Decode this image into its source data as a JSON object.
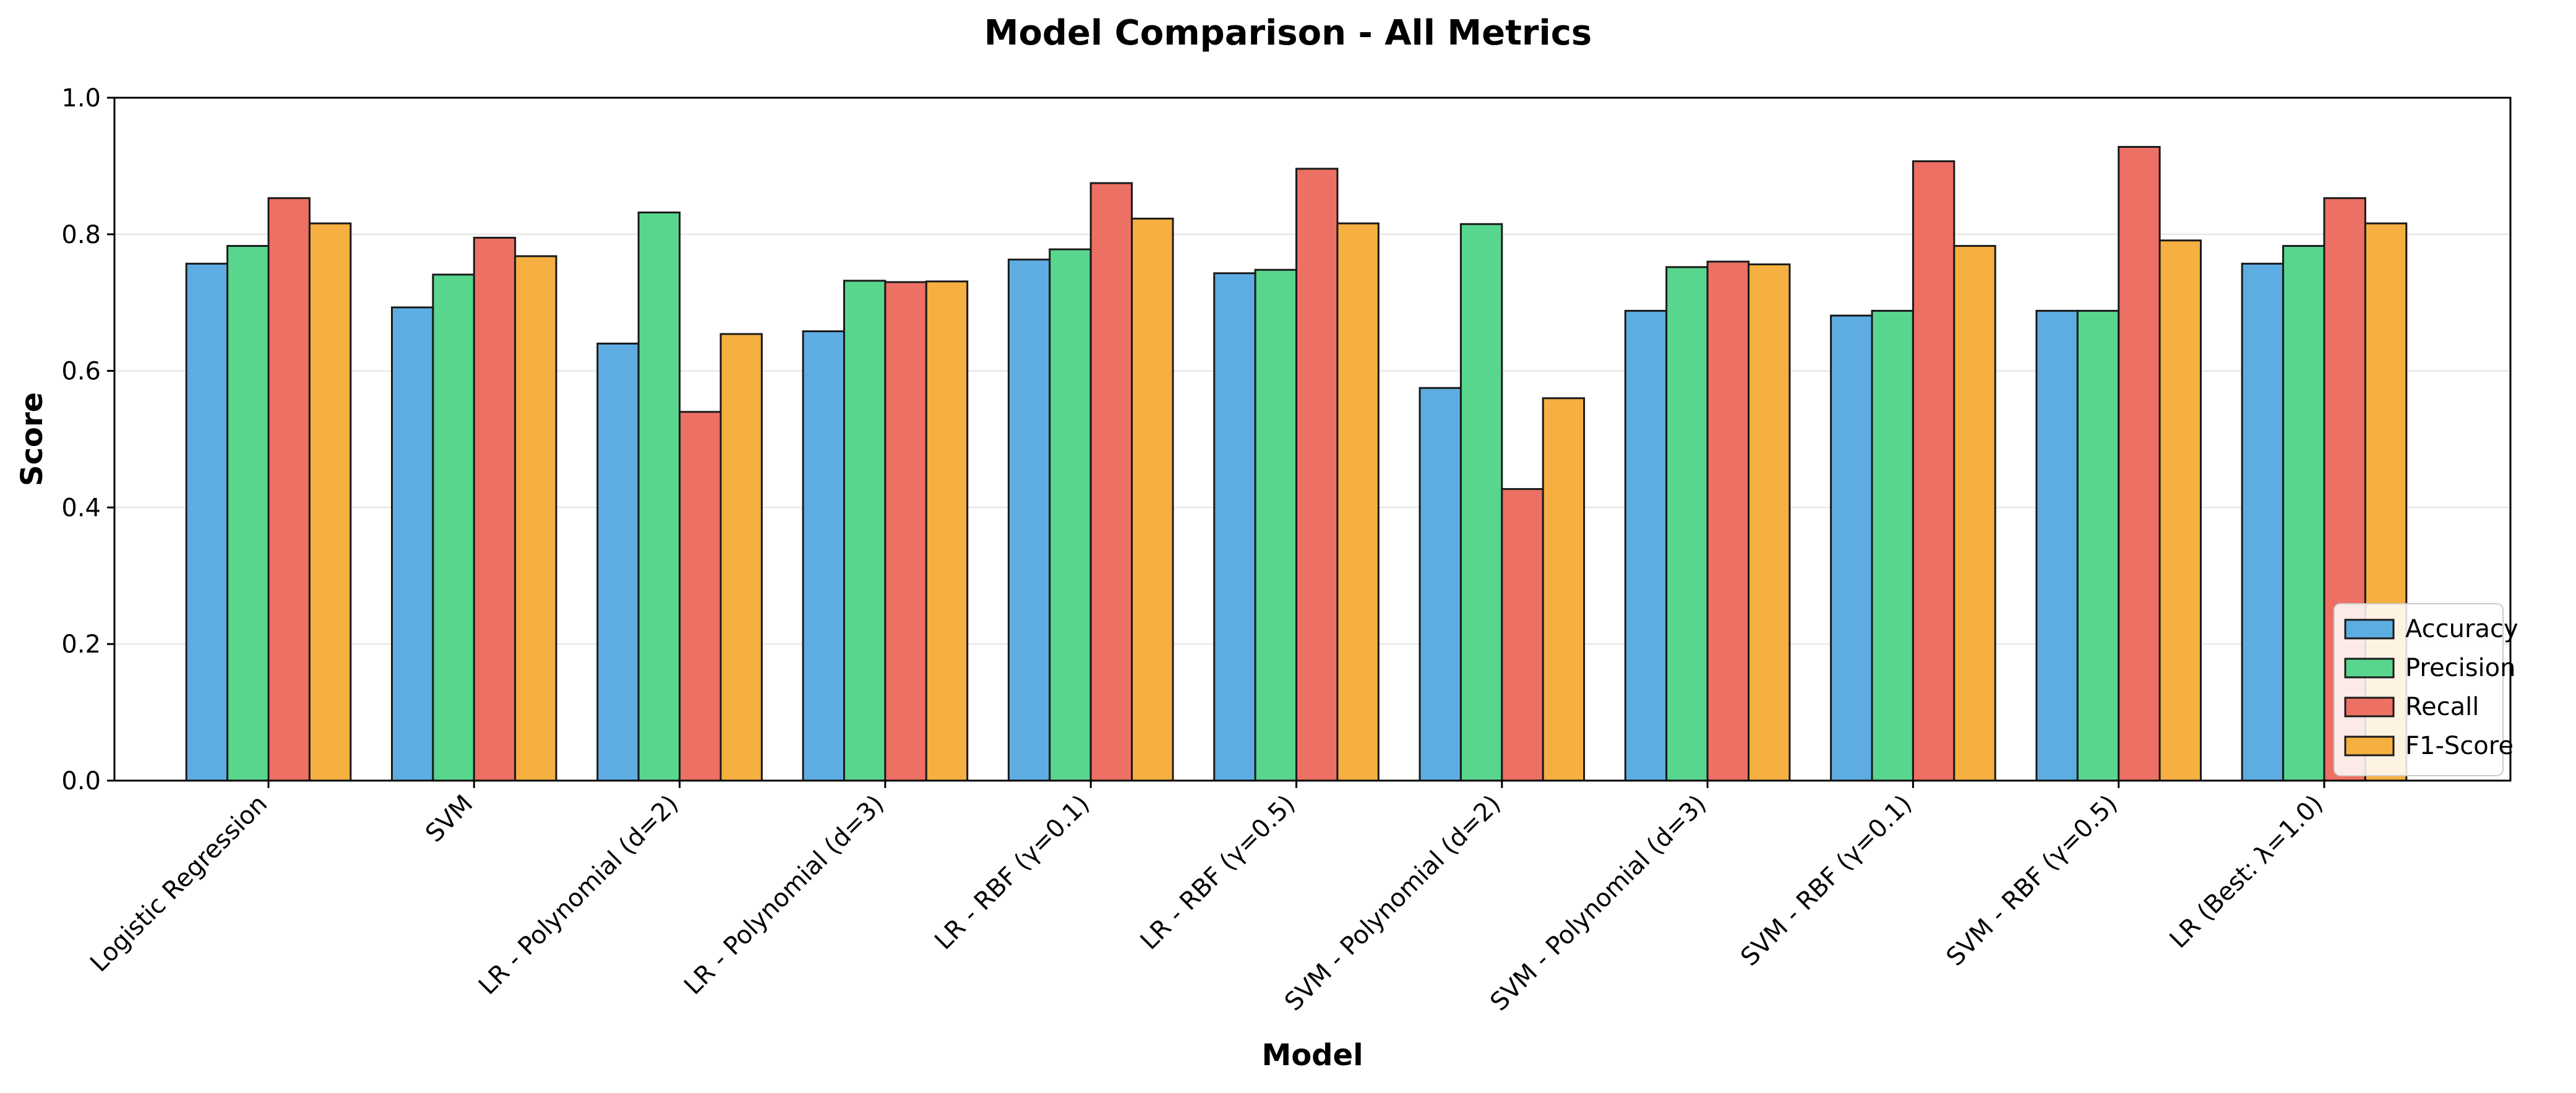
{
  "chart_data": {
    "type": "bar",
    "title": "Model Comparison - All Metrics",
    "xlabel": "Model",
    "ylabel": "Score",
    "ylim": [
      0,
      1.0
    ],
    "yticks": [
      "0.0",
      "0.2",
      "0.4",
      "0.6",
      "0.8",
      "1.0"
    ],
    "grid": "y",
    "legend_position": "lower-right",
    "categories": [
      "Logistic Regression",
      "SVM",
      "LR - Polynomial (d=2)",
      "LR - Polynomial (d=3)",
      "LR - RBF (γ=0.1)",
      "LR - RBF (γ=0.5)",
      "SVM - Polynomial (d=2)",
      "SVM - Polynomial (d=3)",
      "SVM - RBF (γ=0.1)",
      "SVM - RBF (γ=0.5)",
      "LR (Best: λ=1.0)"
    ],
    "series": [
      {
        "name": "Accuracy",
        "color": "#5DADE2",
        "values": [
          0.757,
          0.693,
          0.64,
          0.658,
          0.763,
          0.743,
          0.575,
          0.688,
          0.681,
          0.688,
          0.757
        ]
      },
      {
        "name": "Precision",
        "color": "#58D68D",
        "values": [
          0.783,
          0.741,
          0.832,
          0.732,
          0.778,
          0.748,
          0.815,
          0.752,
          0.688,
          0.688,
          0.783
        ]
      },
      {
        "name": "Recall",
        "color": "#EC7063",
        "values": [
          0.853,
          0.795,
          0.54,
          0.73,
          0.875,
          0.896,
          0.427,
          0.76,
          0.907,
          0.928,
          0.853
        ]
      },
      {
        "name": "F1-Score",
        "color": "#F5B041",
        "values": [
          0.816,
          0.768,
          0.654,
          0.731,
          0.823,
          0.816,
          0.56,
          0.756,
          0.783,
          0.791,
          0.816
        ]
      }
    ]
  }
}
